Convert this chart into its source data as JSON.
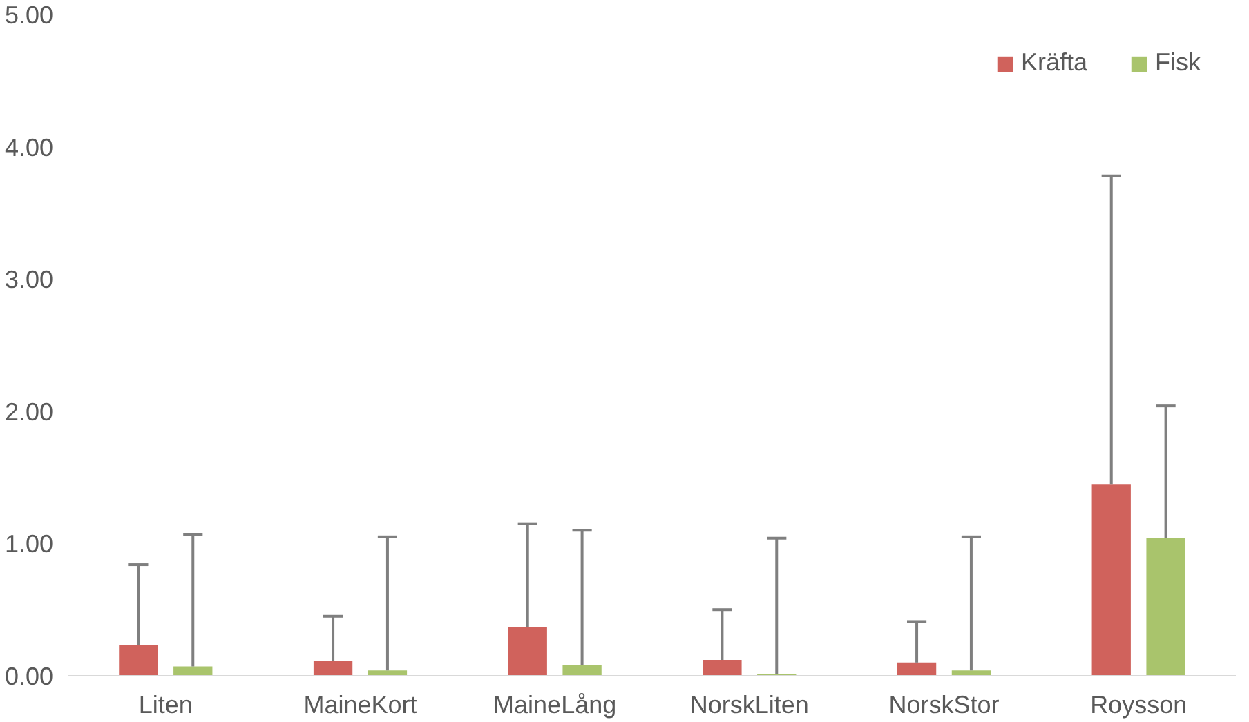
{
  "chart_data": {
    "type": "bar",
    "categories": [
      "Liten",
      "MaineKort",
      "MaineLång",
      "NorskLiten",
      "NorskStor",
      "Roysson"
    ],
    "series": [
      {
        "name": "Kräfta",
        "color": "#d0625c",
        "values": [
          0.23,
          0.11,
          0.37,
          0.12,
          0.1,
          1.45
        ],
        "errors": [
          [
            0.23,
            0.84
          ],
          [
            0.11,
            0.45
          ],
          [
            0.37,
            1.15
          ],
          [
            0.12,
            0.5
          ],
          [
            0.1,
            0.41
          ],
          [
            1.45,
            3.78
          ]
        ]
      },
      {
        "name": "Fisk",
        "color": "#a9c46c",
        "values": [
          0.07,
          0.04,
          0.08,
          0.01,
          0.04,
          1.04
        ],
        "errors": [
          [
            0.07,
            1.07
          ],
          [
            0.04,
            1.05
          ],
          [
            0.08,
            1.1
          ],
          [
            0.01,
            1.04
          ],
          [
            0.04,
            1.05
          ],
          [
            1.04,
            2.04
          ]
        ]
      }
    ],
    "ylim": [
      0,
      5
    ],
    "yticks": [
      {
        "value": 0,
        "label": "0.00"
      },
      {
        "value": 1,
        "label": "1.00"
      },
      {
        "value": 2,
        "label": "2.00"
      },
      {
        "value": 3,
        "label": "3.00"
      },
      {
        "value": 4,
        "label": "4.00"
      },
      {
        "value": 5,
        "label": "5.00"
      }
    ],
    "grid": false,
    "legend": "top right"
  }
}
